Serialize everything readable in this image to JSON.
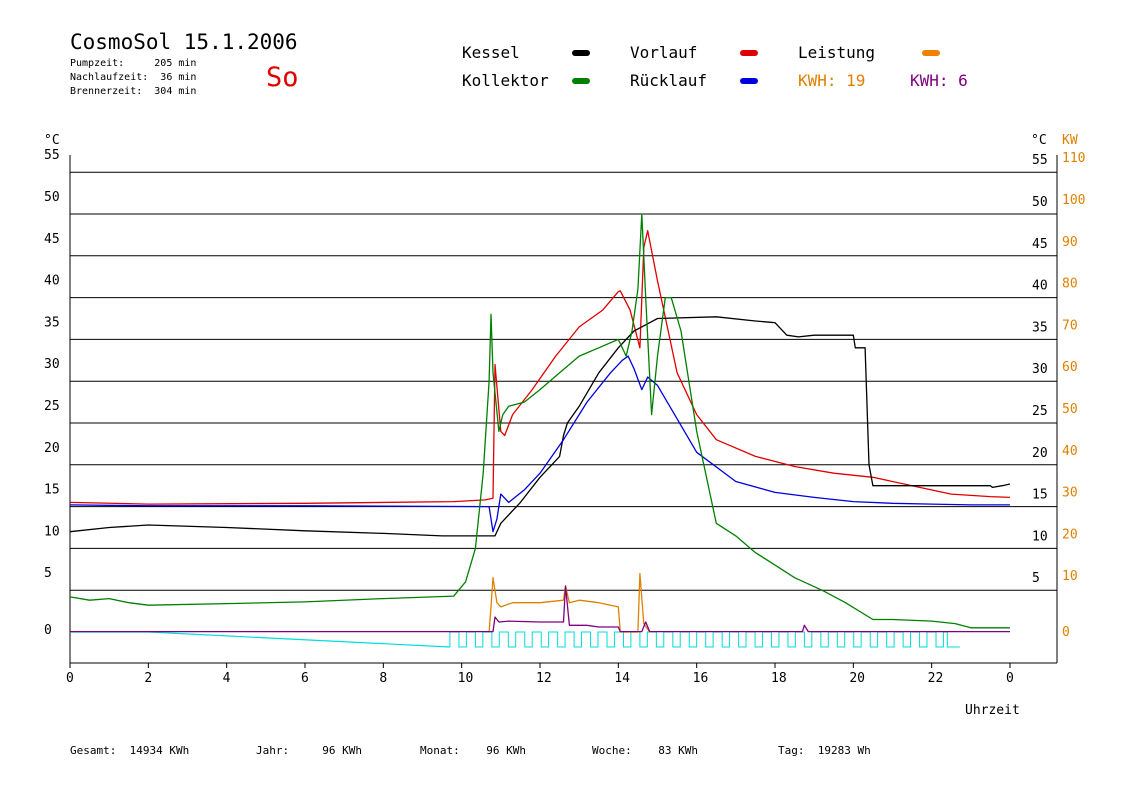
{
  "header": {
    "title": "CosmoSol 15.1.2006",
    "day": "So",
    "stats": [
      "Pumpzeit:     205 min",
      "Nachlaufzeit:  36 min",
      "Brennerzeit:  304 min"
    ]
  },
  "legend": {
    "items": [
      {
        "label": "Kessel",
        "color": "#000000"
      },
      {
        "label": "Kollektor",
        "color": "#008000"
      },
      {
        "label": "Vorlauf",
        "color": "#e00000"
      },
      {
        "label": "Rücklauf",
        "color": "#0000dd"
      },
      {
        "label": "Leistung",
        "color": "#f08000"
      }
    ],
    "kwh": [
      {
        "text": "KWH: 19",
        "color": "#e08000"
      },
      {
        "text": "KWH: 6",
        "color": "#800080"
      }
    ]
  },
  "footer": {
    "items": [
      "Gesamt:  14934 KWh",
      "Jahr:     96 KWh",
      "Monat:    96 KWh",
      "Woche:    83 KWh",
      "Tag:  19283 Wh"
    ]
  },
  "chart_data": {
    "type": "line",
    "xlabel": "Uhrzeit",
    "ylabel_left": "°C",
    "ylabel_right": [
      "°C",
      "KW"
    ],
    "xlim": [
      0,
      24
    ],
    "ylim": [
      0,
      55
    ],
    "y2lim": [
      0,
      110
    ],
    "x_ticks": [
      "0",
      "2",
      "4",
      "6",
      "8",
      "10",
      "12",
      "14",
      "16",
      "18",
      "20",
      "22",
      "0"
    ],
    "y_ticks": [
      0,
      5,
      10,
      15,
      20,
      25,
      30,
      35,
      40,
      45,
      50,
      55
    ],
    "y2_ticks": [
      0,
      10,
      20,
      30,
      40,
      50,
      60,
      70,
      80,
      90,
      100,
      110
    ],
    "grid": true,
    "series": [
      {
        "name": "Vorlauf",
        "color": "#e00000",
        "points": [
          [
            0,
            15.5
          ],
          [
            2,
            15.3
          ],
          [
            6,
            15.4
          ],
          [
            9.8,
            15.6
          ],
          [
            10.6,
            15.8
          ],
          [
            10.8,
            16
          ],
          [
            10.85,
            32
          ],
          [
            11.0,
            24
          ],
          [
            11.1,
            23.5
          ],
          [
            11.3,
            26
          ],
          [
            11.8,
            29
          ],
          [
            12.4,
            33
          ],
          [
            13.0,
            36.5
          ],
          [
            13.6,
            38.5
          ],
          [
            14.0,
            40.7
          ],
          [
            14.05,
            40.8
          ],
          [
            14.3,
            38.5
          ],
          [
            14.55,
            34
          ],
          [
            14.65,
            46
          ],
          [
            14.75,
            48
          ],
          [
            15.0,
            42
          ],
          [
            15.5,
            31
          ],
          [
            16.0,
            26
          ],
          [
            16.5,
            23
          ],
          [
            17.5,
            21
          ],
          [
            18.5,
            19.8
          ],
          [
            19.5,
            19
          ],
          [
            20.5,
            18.5
          ],
          [
            21.5,
            17.5
          ],
          [
            22.5,
            16.5
          ],
          [
            23.5,
            16.2
          ],
          [
            24,
            16.1
          ]
        ]
      },
      {
        "name": "Kessel",
        "color": "#000000",
        "points": [
          [
            0,
            12
          ],
          [
            1,
            12.5
          ],
          [
            2,
            12.8
          ],
          [
            4,
            12.5
          ],
          [
            6,
            12.1
          ],
          [
            8,
            11.8
          ],
          [
            9.5,
            11.5
          ],
          [
            10.7,
            11.5
          ],
          [
            10.85,
            11.5
          ],
          [
            11,
            13
          ],
          [
            11.5,
            15.5
          ],
          [
            12,
            18.5
          ],
          [
            12.5,
            21
          ],
          [
            12.6,
            23.5
          ],
          [
            12.7,
            25
          ],
          [
            13.0,
            27
          ],
          [
            13.5,
            31
          ],
          [
            14.0,
            34
          ],
          [
            14.4,
            36
          ],
          [
            14.8,
            37
          ],
          [
            15.0,
            37.5
          ],
          [
            16.5,
            37.7
          ],
          [
            17.5,
            37.2
          ],
          [
            18.0,
            37.0
          ],
          [
            18.3,
            35.5
          ],
          [
            18.6,
            35.3
          ],
          [
            19.0,
            35.5
          ],
          [
            20.0,
            35.5
          ],
          [
            20.05,
            34
          ],
          [
            20.3,
            34
          ],
          [
            20.4,
            20
          ],
          [
            20.5,
            17.5
          ],
          [
            21,
            17.5
          ],
          [
            22,
            17.5
          ],
          [
            23.5,
            17.5
          ],
          [
            23.55,
            17.3
          ],
          [
            23.8,
            17.5
          ],
          [
            24,
            17.7
          ]
        ]
      },
      {
        "name": "Rücklauf",
        "color": "#0000dd",
        "points": [
          [
            0,
            15.2
          ],
          [
            2,
            15.1
          ],
          [
            6,
            15.1
          ],
          [
            10.7,
            15.0
          ],
          [
            10.8,
            12
          ],
          [
            10.9,
            13.5
          ],
          [
            11.0,
            16.5
          ],
          [
            11.2,
            15.5
          ],
          [
            11.6,
            17
          ],
          [
            12,
            19
          ],
          [
            12.6,
            23
          ],
          [
            13.2,
            27.5
          ],
          [
            13.8,
            31
          ],
          [
            14.1,
            32.5
          ],
          [
            14.25,
            33
          ],
          [
            14.4,
            31.5
          ],
          [
            14.6,
            29
          ],
          [
            14.75,
            30.5
          ],
          [
            15.0,
            29.5
          ],
          [
            15.5,
            25.5
          ],
          [
            16,
            21.5
          ],
          [
            17,
            18
          ],
          [
            18,
            16.7
          ],
          [
            19,
            16.1
          ],
          [
            20,
            15.6
          ],
          [
            21,
            15.4
          ],
          [
            22,
            15.3
          ],
          [
            23,
            15.2
          ],
          [
            24,
            15.2
          ]
        ]
      },
      {
        "name": "Kollektor",
        "color": "#008000",
        "points": [
          [
            0,
            4.2
          ],
          [
            0.5,
            3.8
          ],
          [
            1,
            4.0
          ],
          [
            1.5,
            3.5
          ],
          [
            2,
            3.2
          ],
          [
            4,
            3.4
          ],
          [
            6,
            3.6
          ],
          [
            8,
            4.0
          ],
          [
            9.8,
            4.3
          ],
          [
            10.1,
            6
          ],
          [
            10.35,
            10
          ],
          [
            10.55,
            19
          ],
          [
            10.7,
            30
          ],
          [
            10.75,
            38
          ],
          [
            10.8,
            31
          ],
          [
            10.95,
            24
          ],
          [
            11.05,
            26
          ],
          [
            11.2,
            27
          ],
          [
            11.6,
            27.5
          ],
          [
            12,
            29
          ],
          [
            12.5,
            31
          ],
          [
            13,
            33
          ],
          [
            13.5,
            34
          ],
          [
            14,
            35
          ],
          [
            14.2,
            33
          ],
          [
            14.35,
            36
          ],
          [
            14.5,
            41
          ],
          [
            14.6,
            50
          ],
          [
            14.7,
            40
          ],
          [
            14.85,
            26
          ],
          [
            15.0,
            33
          ],
          [
            15.2,
            40
          ],
          [
            15.35,
            40
          ],
          [
            15.6,
            36
          ],
          [
            16,
            24
          ],
          [
            16.5,
            13
          ],
          [
            17,
            11.5
          ],
          [
            17.5,
            9.5
          ],
          [
            18,
            8
          ],
          [
            18.5,
            6.5
          ],
          [
            19.2,
            5
          ],
          [
            19.8,
            3.5
          ],
          [
            20.5,
            1.5
          ],
          [
            21,
            1.5
          ],
          [
            22,
            1.3
          ],
          [
            22.6,
            1.0
          ],
          [
            23,
            0.5
          ],
          [
            24,
            0.5
          ]
        ]
      },
      {
        "name": "Leistung",
        "color": "#e08000",
        "points": [
          [
            10.7,
            0
          ],
          [
            10.75,
            3
          ],
          [
            10.8,
            6.5
          ],
          [
            10.9,
            3.5
          ],
          [
            11.0,
            3
          ],
          [
            11.3,
            3.5
          ],
          [
            12.0,
            3.5
          ],
          [
            12.6,
            3.8
          ],
          [
            12.65,
            5.5
          ],
          [
            12.75,
            3.5
          ],
          [
            13.0,
            3.8
          ],
          [
            13.5,
            3.5
          ],
          [
            14.0,
            3
          ],
          [
            14.05,
            0
          ],
          [
            14.5,
            0
          ],
          [
            14.55,
            7
          ],
          [
            14.65,
            1
          ],
          [
            14.8,
            0
          ]
        ]
      },
      {
        "name": "KWH purple",
        "color": "#800080",
        "points": [
          [
            0,
            0.05
          ],
          [
            10.8,
            0.05
          ],
          [
            10.85,
            1.8
          ],
          [
            10.95,
            1.2
          ],
          [
            11.2,
            1.3
          ],
          [
            12.0,
            1.2
          ],
          [
            12.6,
            1.2
          ],
          [
            12.65,
            5.5
          ],
          [
            12.75,
            0.8
          ],
          [
            13.2,
            0.8
          ],
          [
            13.5,
            0.6
          ],
          [
            14.0,
            0.6
          ],
          [
            14.05,
            0.05
          ],
          [
            14.6,
            0.05
          ],
          [
            14.7,
            1.2
          ],
          [
            14.8,
            0.05
          ],
          [
            18.7,
            0.05
          ],
          [
            18.75,
            0.8
          ],
          [
            18.85,
            0.05
          ],
          [
            24,
            0.05
          ]
        ]
      }
    ],
    "pump": {
      "color": "#00dddd",
      "baseline_points": [
        [
          0,
          0
        ],
        [
          2,
          0
        ],
        [
          9.7,
          -1.8
        ]
      ],
      "pulses_start": 9.7,
      "pulses_end": 22.4
    }
  }
}
